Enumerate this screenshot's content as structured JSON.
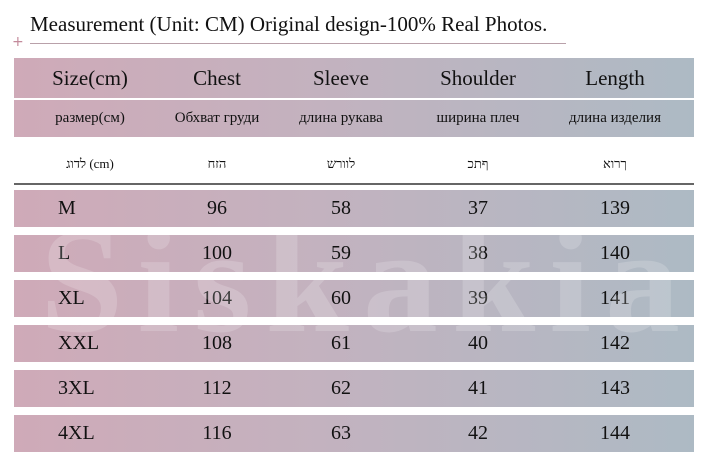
{
  "title": "Measurement (Unit: CM) Original design-100% Real Photos.",
  "watermark": "Siskakia",
  "table": {
    "header": [
      [
        "Size(cm)",
        "Chest",
        "Sleeve",
        "Shoulder",
        "Length"
      ],
      [
        "размер(см)",
        "Обхват груди",
        "длина рукава",
        "ширина плеч",
        "длина изделия"
      ],
      [
        "לדוג (cm)",
        "הזח",
        "לוורש",
        "ףתכ",
        "ךרוא"
      ]
    ],
    "rows": [
      [
        "M",
        96,
        58,
        37,
        139
      ],
      [
        "L",
        100,
        59,
        38,
        140
      ],
      [
        "XL",
        104,
        60,
        39,
        141
      ],
      [
        "XXL",
        108,
        61,
        40,
        142
      ],
      [
        "3XL",
        112,
        62,
        41,
        143
      ],
      [
        "4XL",
        116,
        63,
        42,
        144
      ]
    ]
  }
}
